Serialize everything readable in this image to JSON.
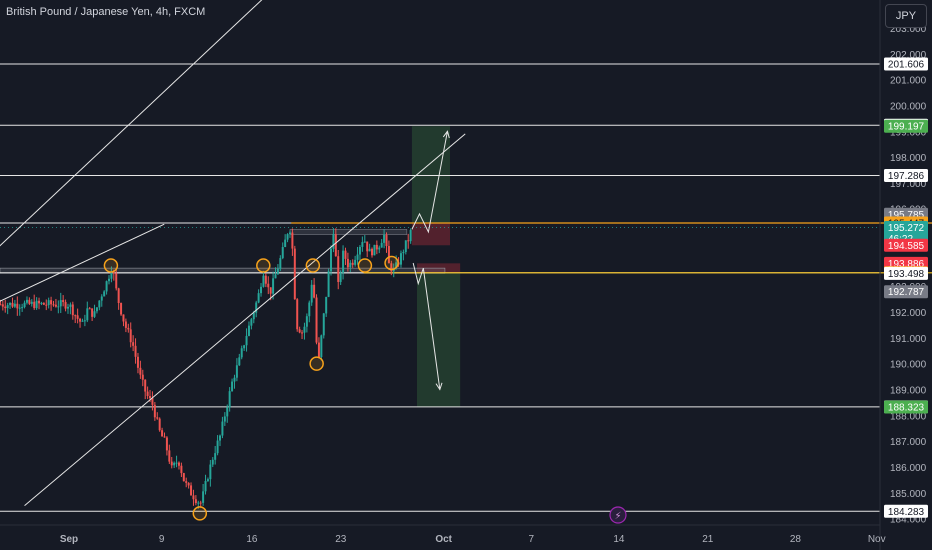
{
  "header": {
    "symbol_title": "British Pound / Japanese Yen, 4h, FXCM",
    "currency": "JPY"
  },
  "colors": {
    "bg": "#161a25",
    "up": "#26a69a",
    "down": "#ef5350",
    "orange": "#f7a21b",
    "text": "#d1d4dc"
  },
  "event_icon": "lightning-icon",
  "chart_data": {
    "type": "candlestick",
    "title": "British Pound / Japanese Yen, 4h, FXCM",
    "ylim": [
      184.0,
      203.4
    ],
    "y_ticks": [
      "203.000",
      "202.000",
      "201.000",
      "200.000",
      "199.000",
      "198.000",
      "197.000",
      "196.000",
      "195.000",
      "194.000",
      "193.000",
      "192.000",
      "191.000",
      "190.000",
      "189.000",
      "188.000",
      "187.000",
      "186.000",
      "185.000",
      "184.000"
    ],
    "x_ticks": [
      "Sep",
      "9",
      "16",
      "23",
      "Oct",
      "7",
      "14",
      "21",
      "28",
      "Nov"
    ],
    "horizontal_levels": [
      201.606,
      199.233,
      197.286,
      195.447,
      193.519,
      188.328,
      184.283
    ],
    "price_labels": [
      {
        "text": "201.606",
        "v": 201.606,
        "bg": "#ffffff",
        "fg": "#131722"
      },
      {
        "text": "199.233",
        "v": 199.233,
        "bg": "#ffffff",
        "fg": "#131722"
      },
      {
        "text": "199.197",
        "v": 199.197,
        "bg": "#4caf50",
        "fg": "#ffffff"
      },
      {
        "text": "197.286",
        "v": 197.286,
        "bg": "#ffffff",
        "fg": "#131722"
      },
      {
        "text": "195.785",
        "v": 195.785,
        "bg": "#787b86",
        "fg": "#ffffff"
      },
      {
        "text": "195.447",
        "v": 195.447,
        "bg": "#f7a21b",
        "fg": "#131722"
      },
      {
        "text": "195.272",
        "v": 195.272,
        "sub": "46:22",
        "bg": "#26a69a",
        "fg": "#ffffff"
      },
      {
        "text": "194.585",
        "v": 194.585,
        "bg": "#f23645",
        "fg": "#ffffff"
      },
      {
        "text": "193.886",
        "v": 193.886,
        "bg": "#f23645",
        "fg": "#ffffff"
      },
      {
        "text": "193.519",
        "v": 193.519,
        "bg": "#f7a21b",
        "fg": "#131722"
      },
      {
        "text": "193.498",
        "v": 193.498,
        "bg": "#ffffff",
        "fg": "#131722"
      },
      {
        "text": "192.787",
        "v": 192.787,
        "bg": "#787b86",
        "fg": "#ffffff"
      },
      {
        "text": "188.328",
        "v": 188.328,
        "bg": "#ffffff",
        "fg": "#131722"
      },
      {
        "text": "188.323",
        "v": 188.323,
        "bg": "#4caf50",
        "fg": "#ffffff"
      },
      {
        "text": "184.283",
        "v": 184.283,
        "bg": "#ffffff",
        "fg": "#131722"
      }
    ],
    "price_path": [
      [
        0,
        192.3
      ],
      [
        0.6,
        191.8
      ],
      [
        1.1,
        191.5
      ],
      [
        1.4,
        192.1
      ],
      [
        2,
        191.9
      ],
      [
        2.5,
        192.6
      ],
      [
        3,
        193.2
      ],
      [
        3.4,
        193.8
      ],
      [
        3.8,
        192.6
      ],
      [
        4.4,
        191.5
      ],
      [
        5,
        190.8
      ],
      [
        5.6,
        189.5
      ],
      [
        6.1,
        188.8
      ],
      [
        6.6,
        188.4
      ],
      [
        7.1,
        187.4
      ],
      [
        7.6,
        186.9
      ],
      [
        8.1,
        185.9
      ],
      [
        8.6,
        186.3
      ],
      [
        9.1,
        185.4
      ],
      [
        9.6,
        185.0
      ],
      [
        10.1,
        184.7
      ],
      [
        10.4,
        184.6
      ],
      [
        10.9,
        185.6
      ],
      [
        11.4,
        186.5
      ],
      [
        11.9,
        187.2
      ],
      [
        12.4,
        188.3
      ],
      [
        12.9,
        189.4
      ],
      [
        13.4,
        190.1
      ],
      [
        13.9,
        191.0
      ],
      [
        14.4,
        191.8
      ],
      [
        14.9,
        192.6
      ],
      [
        15.3,
        193.6
      ],
      [
        15.8,
        192.7
      ],
      [
        16.3,
        193.5
      ],
      [
        16.8,
        194.3
      ],
      [
        17.2,
        195.1
      ],
      [
        17.5,
        195.3
      ],
      [
        17.9,
        191.5
      ],
      [
        18.4,
        191.2
      ],
      [
        18.8,
        191.9
      ],
      [
        19.2,
        193.5
      ],
      [
        19.6,
        189.8
      ],
      [
        20.0,
        191.6
      ],
      [
        20.4,
        193.3
      ],
      [
        20.8,
        195.3
      ],
      [
        21.2,
        193.0
      ],
      [
        21.6,
        194.3
      ],
      [
        22.0,
        193.8
      ],
      [
        22.4,
        194.0
      ],
      [
        22.8,
        194.5
      ],
      [
        23.2,
        194.9
      ],
      [
        23.6,
        194.3
      ],
      [
        24.0,
        194.4
      ],
      [
        24.4,
        194.6
      ],
      [
        24.8,
        195.0
      ],
      [
        25.2,
        193.8
      ],
      [
        25.6,
        193.6
      ],
      [
        26.0,
        194.0
      ],
      [
        26.4,
        194.5
      ],
      [
        26.8,
        194.9
      ],
      [
        27.0,
        195.27
      ]
    ],
    "trend_lines": [
      {
        "from": [
          -11,
          192.0
        ],
        "to": [
          37.5,
          214.4
        ]
      },
      {
        "from": [
          -3.5,
          184.5
        ],
        "to": [
          31.2,
          198.9
        ]
      }
    ],
    "resistance_zone": {
      "x": [
        17.4,
        26.6
      ],
      "y": [
        195.0,
        195.2
      ]
    },
    "support_zone": {
      "x": [
        -13,
        29.6
      ],
      "y": [
        193.5,
        193.7
      ]
    },
    "orange_line": {
      "x": [
        17.5,
        37.6
      ],
      "v": 195.447
    },
    "orange_line_2": {
      "x": [
        23.2,
        37.6
      ],
      "v": 193.519
    },
    "long_position": {
      "x": [
        27.0,
        30.0
      ],
      "entry": 195.447,
      "sl": 194.585,
      "tp": 199.197
    },
    "short_position": {
      "x": [
        27.4,
        30.8
      ],
      "entry": 193.519,
      "sl": 193.886,
      "tp": 188.323
    },
    "projection_up": [
      [
        27.0,
        195.2
      ],
      [
        27.6,
        195.8
      ],
      [
        28.3,
        195.1
      ],
      [
        29.8,
        199.0
      ]
    ],
    "projection_down": [
      [
        27.1,
        193.9
      ],
      [
        27.5,
        193.1
      ],
      [
        27.9,
        193.7
      ],
      [
        29.2,
        189.0
      ]
    ],
    "swing_markers": [
      [
        3.3,
        193.8
      ],
      [
        15.3,
        193.8
      ],
      [
        19.2,
        193.8
      ],
      [
        19.5,
        190.0
      ],
      [
        23.3,
        193.8
      ],
      [
        25.4,
        193.9
      ],
      [
        10.3,
        184.2
      ]
    ]
  }
}
